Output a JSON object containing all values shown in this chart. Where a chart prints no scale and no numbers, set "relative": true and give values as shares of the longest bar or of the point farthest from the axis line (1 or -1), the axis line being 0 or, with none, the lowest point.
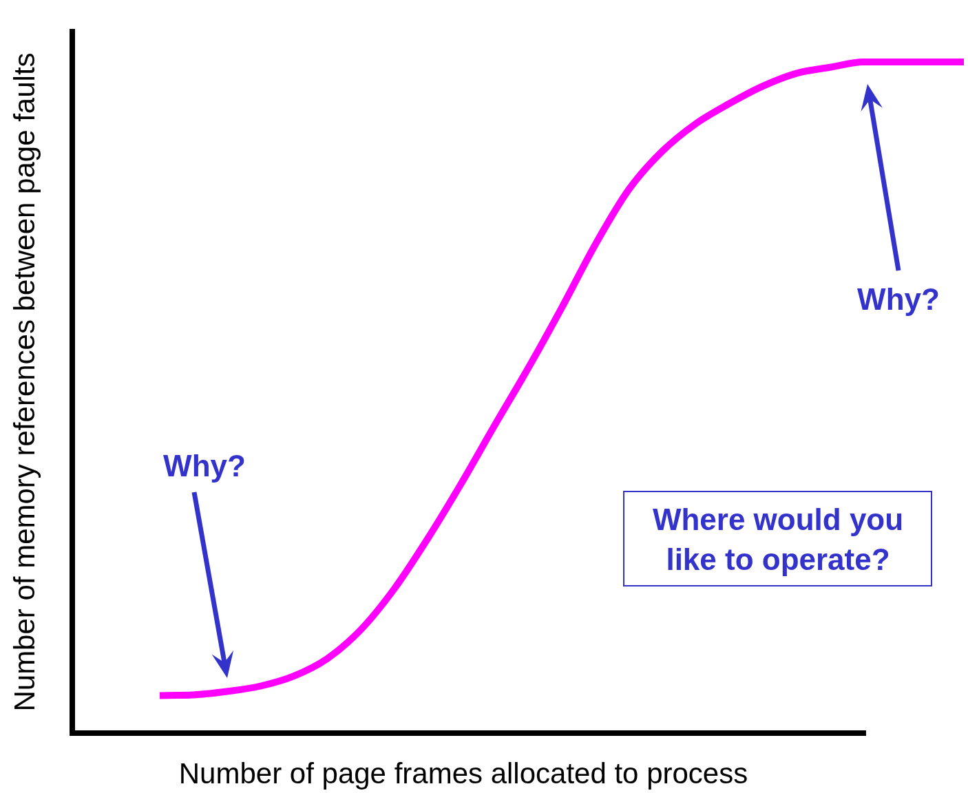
{
  "chart_data": {
    "type": "line",
    "relative": true,
    "xlabel": "Number of page frames allocated to process",
    "ylabel": "Number of memory references between page faults",
    "categories": [
      null,
      null,
      null,
      null,
      null,
      null,
      null,
      null,
      null,
      null,
      null,
      null,
      null,
      null,
      null,
      null,
      null,
      null,
      null,
      null,
      null,
      null,
      null,
      null,
      null
    ],
    "series": [
      {
        "color": "#ff00ff",
        "values": [
          0.056,
          0.057,
          0.062,
          0.07,
          0.085,
          0.111,
          0.154,
          0.215,
          0.29,
          0.372,
          0.459,
          0.544,
          0.634,
          0.728,
          0.81,
          0.867,
          0.908,
          0.938,
          0.964,
          0.983,
          0.992,
          1,
          1,
          1,
          1
        ]
      }
    ],
    "annotations": [
      "Why?",
      "Why?",
      "Where would you like to operate?"
    ]
  }
}
